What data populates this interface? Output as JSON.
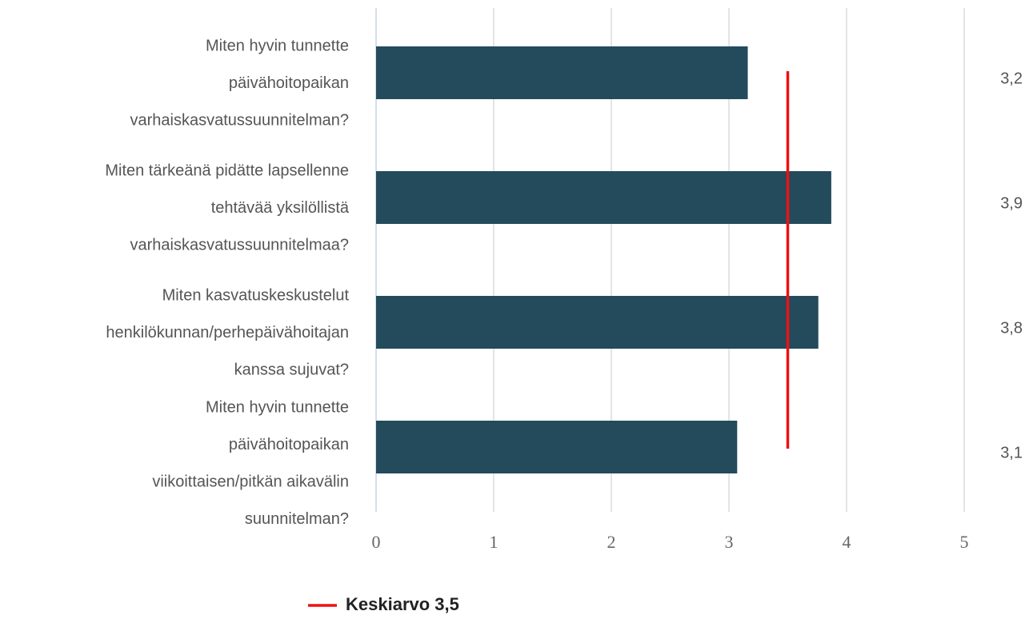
{
  "chart_data": {
    "type": "bar",
    "orientation": "horizontal",
    "categories": [
      [
        "Miten hyvin tunnette",
        "päivähoitopaikan",
        "varhaiskasvatussuunnitelman?"
      ],
      [
        "Miten tärkeänä pidätte lapsellenne",
        "tehtävää yksilöllistä",
        "varhaiskasvatussuunnitelmaa?"
      ],
      [
        "Miten kasvatuskeskustelut",
        "henkilökunnan/perhepäivähoitajan",
        "kanssa sujuvat?"
      ],
      [
        "Miten hyvin tunnette",
        "päivähoitopaikan",
        "viikoittaisen/pitkän aikavälin",
        "suunnitelman?"
      ]
    ],
    "values": [
      3.16,
      3.87,
      3.76,
      3.07
    ],
    "value_labels": [
      "3,2",
      "3,9",
      "3,8",
      "3,1"
    ],
    "color": "#234b5c",
    "xlim": [
      0,
      5
    ],
    "xticks": [
      0,
      1,
      2,
      3,
      4,
      5
    ],
    "grid": true,
    "reference_line": {
      "name": "Keskiarvo 3,5",
      "value": 3.5,
      "color": "#ee1111"
    },
    "legend": "bottom"
  }
}
